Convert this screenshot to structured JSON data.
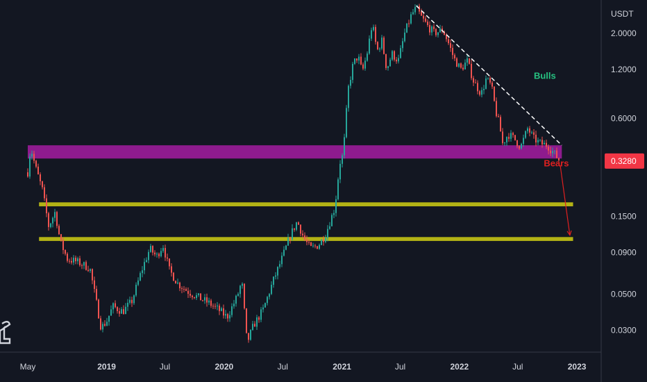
{
  "chart_data": {
    "type": "candlestick",
    "y_scale": "log",
    "price_unit": "USDT",
    "ylim": [
      0.022,
      3.2
    ],
    "y_ticks": [
      {
        "value": 2.0,
        "label": "2.0000"
      },
      {
        "value": 1.2,
        "label": "1.2000"
      },
      {
        "value": 0.6,
        "label": "0.6000"
      },
      {
        "value": 0.15,
        "label": "0.1500"
      },
      {
        "value": 0.09,
        "label": "0.0900"
      },
      {
        "value": 0.05,
        "label": "0.0500"
      },
      {
        "value": 0.03,
        "label": "0.0300"
      }
    ],
    "x_range": [
      "2018-05-01",
      "2023-01-31"
    ],
    "x_ticks": [
      {
        "date": "2018-05-01",
        "label": "May",
        "bold": false
      },
      {
        "date": "2019-01-01",
        "label": "2019",
        "bold": true
      },
      {
        "date": "2019-07-01",
        "label": "Jul",
        "bold": false
      },
      {
        "date": "2020-01-01",
        "label": "2020",
        "bold": true
      },
      {
        "date": "2020-07-01",
        "label": "Jul",
        "bold": false
      },
      {
        "date": "2021-01-01",
        "label": "2021",
        "bold": true
      },
      {
        "date": "2021-07-01",
        "label": "Jul",
        "bold": false
      },
      {
        "date": "2022-01-01",
        "label": "2022",
        "bold": true
      },
      {
        "date": "2022-07-01",
        "label": "Jul",
        "bold": false
      },
      {
        "date": "2023-01-01",
        "label": "2023",
        "bold": true
      }
    ],
    "price_path": [
      [
        "2018-05-01",
        0.28
      ],
      [
        "2018-05-10",
        0.4
      ],
      [
        "2018-05-25",
        0.3
      ],
      [
        "2018-06-15",
        0.22
      ],
      [
        "2018-07-05",
        0.13
      ],
      [
        "2018-07-25",
        0.16
      ],
      [
        "2018-08-10",
        0.105
      ],
      [
        "2018-09-01",
        0.082
      ],
      [
        "2018-10-01",
        0.079
      ],
      [
        "2018-11-10",
        0.072
      ],
      [
        "2018-12-15",
        0.031
      ],
      [
        "2019-01-01",
        0.034
      ],
      [
        "2019-01-20",
        0.042
      ],
      [
        "2019-02-20",
        0.039
      ],
      [
        "2019-03-20",
        0.045
      ],
      [
        "2019-04-20",
        0.07
      ],
      [
        "2019-05-15",
        0.095
      ],
      [
        "2019-06-05",
        0.085
      ],
      [
        "2019-06-25",
        0.1
      ],
      [
        "2019-07-15",
        0.07
      ],
      [
        "2019-08-10",
        0.058
      ],
      [
        "2019-09-10",
        0.052
      ],
      [
        "2019-10-10",
        0.048
      ],
      [
        "2019-11-15",
        0.044
      ],
      [
        "2019-12-15",
        0.04
      ],
      [
        "2020-01-10",
        0.036
      ],
      [
        "2020-02-10",
        0.048
      ],
      [
        "2020-02-25",
        0.06
      ],
      [
        "2020-03-12",
        0.025
      ],
      [
        "2020-04-01",
        0.032
      ],
      [
        "2020-05-01",
        0.04
      ],
      [
        "2020-06-01",
        0.06
      ],
      [
        "2020-07-01",
        0.085
      ],
      [
        "2020-07-25",
        0.115
      ],
      [
        "2020-08-15",
        0.14
      ],
      [
        "2020-09-05",
        0.11
      ],
      [
        "2020-09-25",
        0.095
      ],
      [
        "2020-10-20",
        0.1
      ],
      [
        "2020-11-10",
        0.115
      ],
      [
        "2020-11-25",
        0.14
      ],
      [
        "2020-12-10",
        0.17
      ],
      [
        "2020-12-25",
        0.32
      ],
      [
        "2021-01-05",
        0.36
      ],
      [
        "2021-01-20",
        0.9
      ],
      [
        "2021-02-05",
        1.3
      ],
      [
        "2021-02-20",
        1.45
      ],
      [
        "2021-03-05",
        1.15
      ],
      [
        "2021-03-20",
        1.5
      ],
      [
        "2021-04-05",
        2.3
      ],
      [
        "2021-04-20",
        1.55
      ],
      [
        "2021-05-05",
        1.8
      ],
      [
        "2021-05-20",
        1.2
      ],
      [
        "2021-06-05",
        1.5
      ],
      [
        "2021-06-25",
        1.35
      ],
      [
        "2021-07-15",
        2.0
      ],
      [
        "2021-08-05",
        2.6
      ],
      [
        "2021-08-20",
        2.85
      ],
      [
        "2021-09-05",
        2.5
      ],
      [
        "2021-09-25",
        2.2
      ],
      [
        "2021-10-15",
        2.0
      ],
      [
        "2021-11-10",
        2.1
      ],
      [
        "2021-11-25",
        1.8
      ],
      [
        "2021-12-15",
        1.4
      ],
      [
        "2022-01-05",
        1.2
      ],
      [
        "2022-01-25",
        1.35
      ],
      [
        "2022-02-15",
        1.0
      ],
      [
        "2022-03-10",
        0.85
      ],
      [
        "2022-03-25",
        1.05
      ],
      [
        "2022-04-10",
        0.95
      ],
      [
        "2022-04-25",
        0.65
      ],
      [
        "2022-05-05",
        0.55
      ],
      [
        "2022-05-15",
        0.42
      ],
      [
        "2022-06-01",
        0.48
      ],
      [
        "2022-06-20",
        0.45
      ],
      [
        "2022-07-10",
        0.4
      ],
      [
        "2022-08-01",
        0.52
      ],
      [
        "2022-08-20",
        0.45
      ],
      [
        "2022-09-10",
        0.42
      ],
      [
        "2022-10-01",
        0.41
      ],
      [
        "2022-10-25",
        0.36
      ],
      [
        "2022-11-08",
        0.33
      ]
    ],
    "last_price": {
      "value": 0.328,
      "label": "0.3280"
    },
    "zones": [
      {
        "name": "resistance-zone",
        "from": 0.34,
        "to": 0.41,
        "x_start": "2018-05-01",
        "x_end": "2022-11-15",
        "color": "#8e1b8e"
      },
      {
        "name": "upper-support",
        "from": 0.173,
        "to": 0.183,
        "x_start": "2018-06-05",
        "x_end": "2022-12-20",
        "color": "#b3b315"
      },
      {
        "name": "lower-support",
        "from": 0.106,
        "to": 0.112,
        "x_start": "2018-06-05",
        "x_end": "2022-12-20",
        "color": "#b3b315"
      }
    ],
    "trendline": {
      "from": [
        "2021-08-20",
        2.95
      ],
      "to": [
        "2022-11-15",
        0.41
      ],
      "style": "dashed",
      "color": "#ffffff"
    },
    "projection_arrow": {
      "from": [
        "2022-11-10",
        0.31
      ],
      "to": [
        "2022-12-10",
        0.115
      ],
      "color": "#e02020"
    },
    "annotations": [
      {
        "text": "Bulls",
        "date": "2022-08-20",
        "price": 1.05,
        "color": "#26c281"
      },
      {
        "text": "Bears",
        "date": "2022-09-20",
        "price": 0.305,
        "color": "#e02020"
      }
    ],
    "colors": {
      "background": "#131722",
      "up": "#26a69a",
      "down": "#ef5350",
      "axis_text": "#d1d4dc",
      "axis_line": "#363a45",
      "price_badge": "#f23645"
    }
  }
}
